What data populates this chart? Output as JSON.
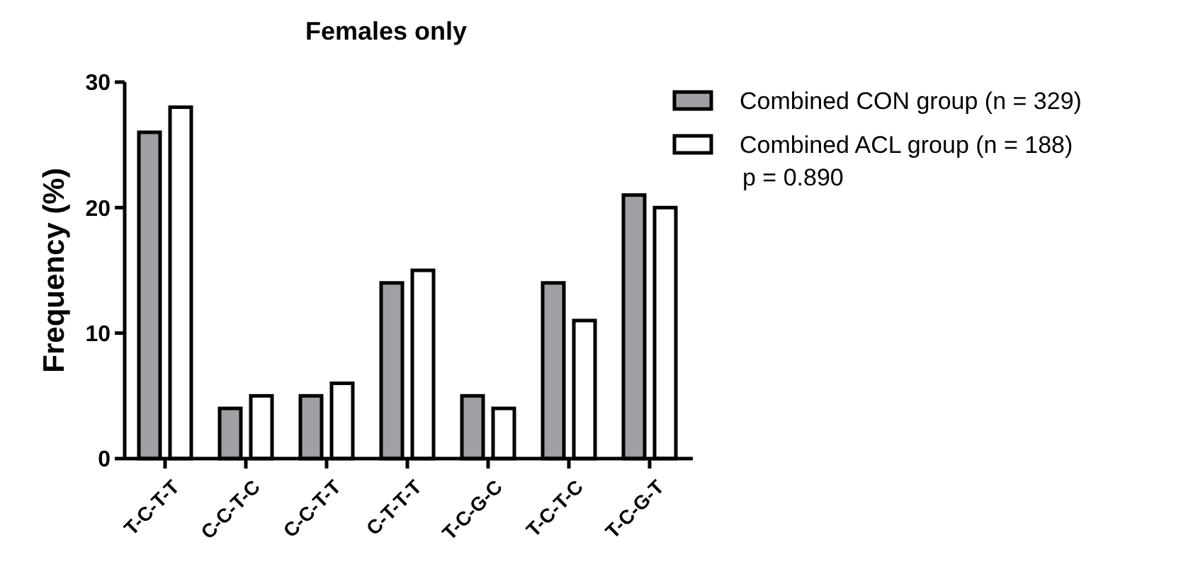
{
  "chart_data": {
    "type": "bar",
    "title": "Females only",
    "ylabel": "Frequency (%)",
    "categories": [
      "T-C-T-T",
      "C-C-T-C",
      "C-C-T-T",
      "C-T-T-T",
      "T-C-G-C",
      "T-C-T-C",
      "T-C-G-T"
    ],
    "series": [
      {
        "name": "Combined CON group (n = 329)",
        "color": "#a0a0a4",
        "values": [
          26,
          4,
          5,
          14,
          5,
          14,
          21
        ]
      },
      {
        "name": "Combined ACL group (n = 188)",
        "color": "#ffffff",
        "values": [
          28,
          5,
          6,
          15,
          4,
          11,
          20
        ]
      }
    ],
    "ylim": [
      0,
      30
    ],
    "yticks": [
      0,
      10,
      20,
      30
    ],
    "grid": false,
    "legend": "right",
    "annotations": [
      "p = 0.890"
    ]
  }
}
